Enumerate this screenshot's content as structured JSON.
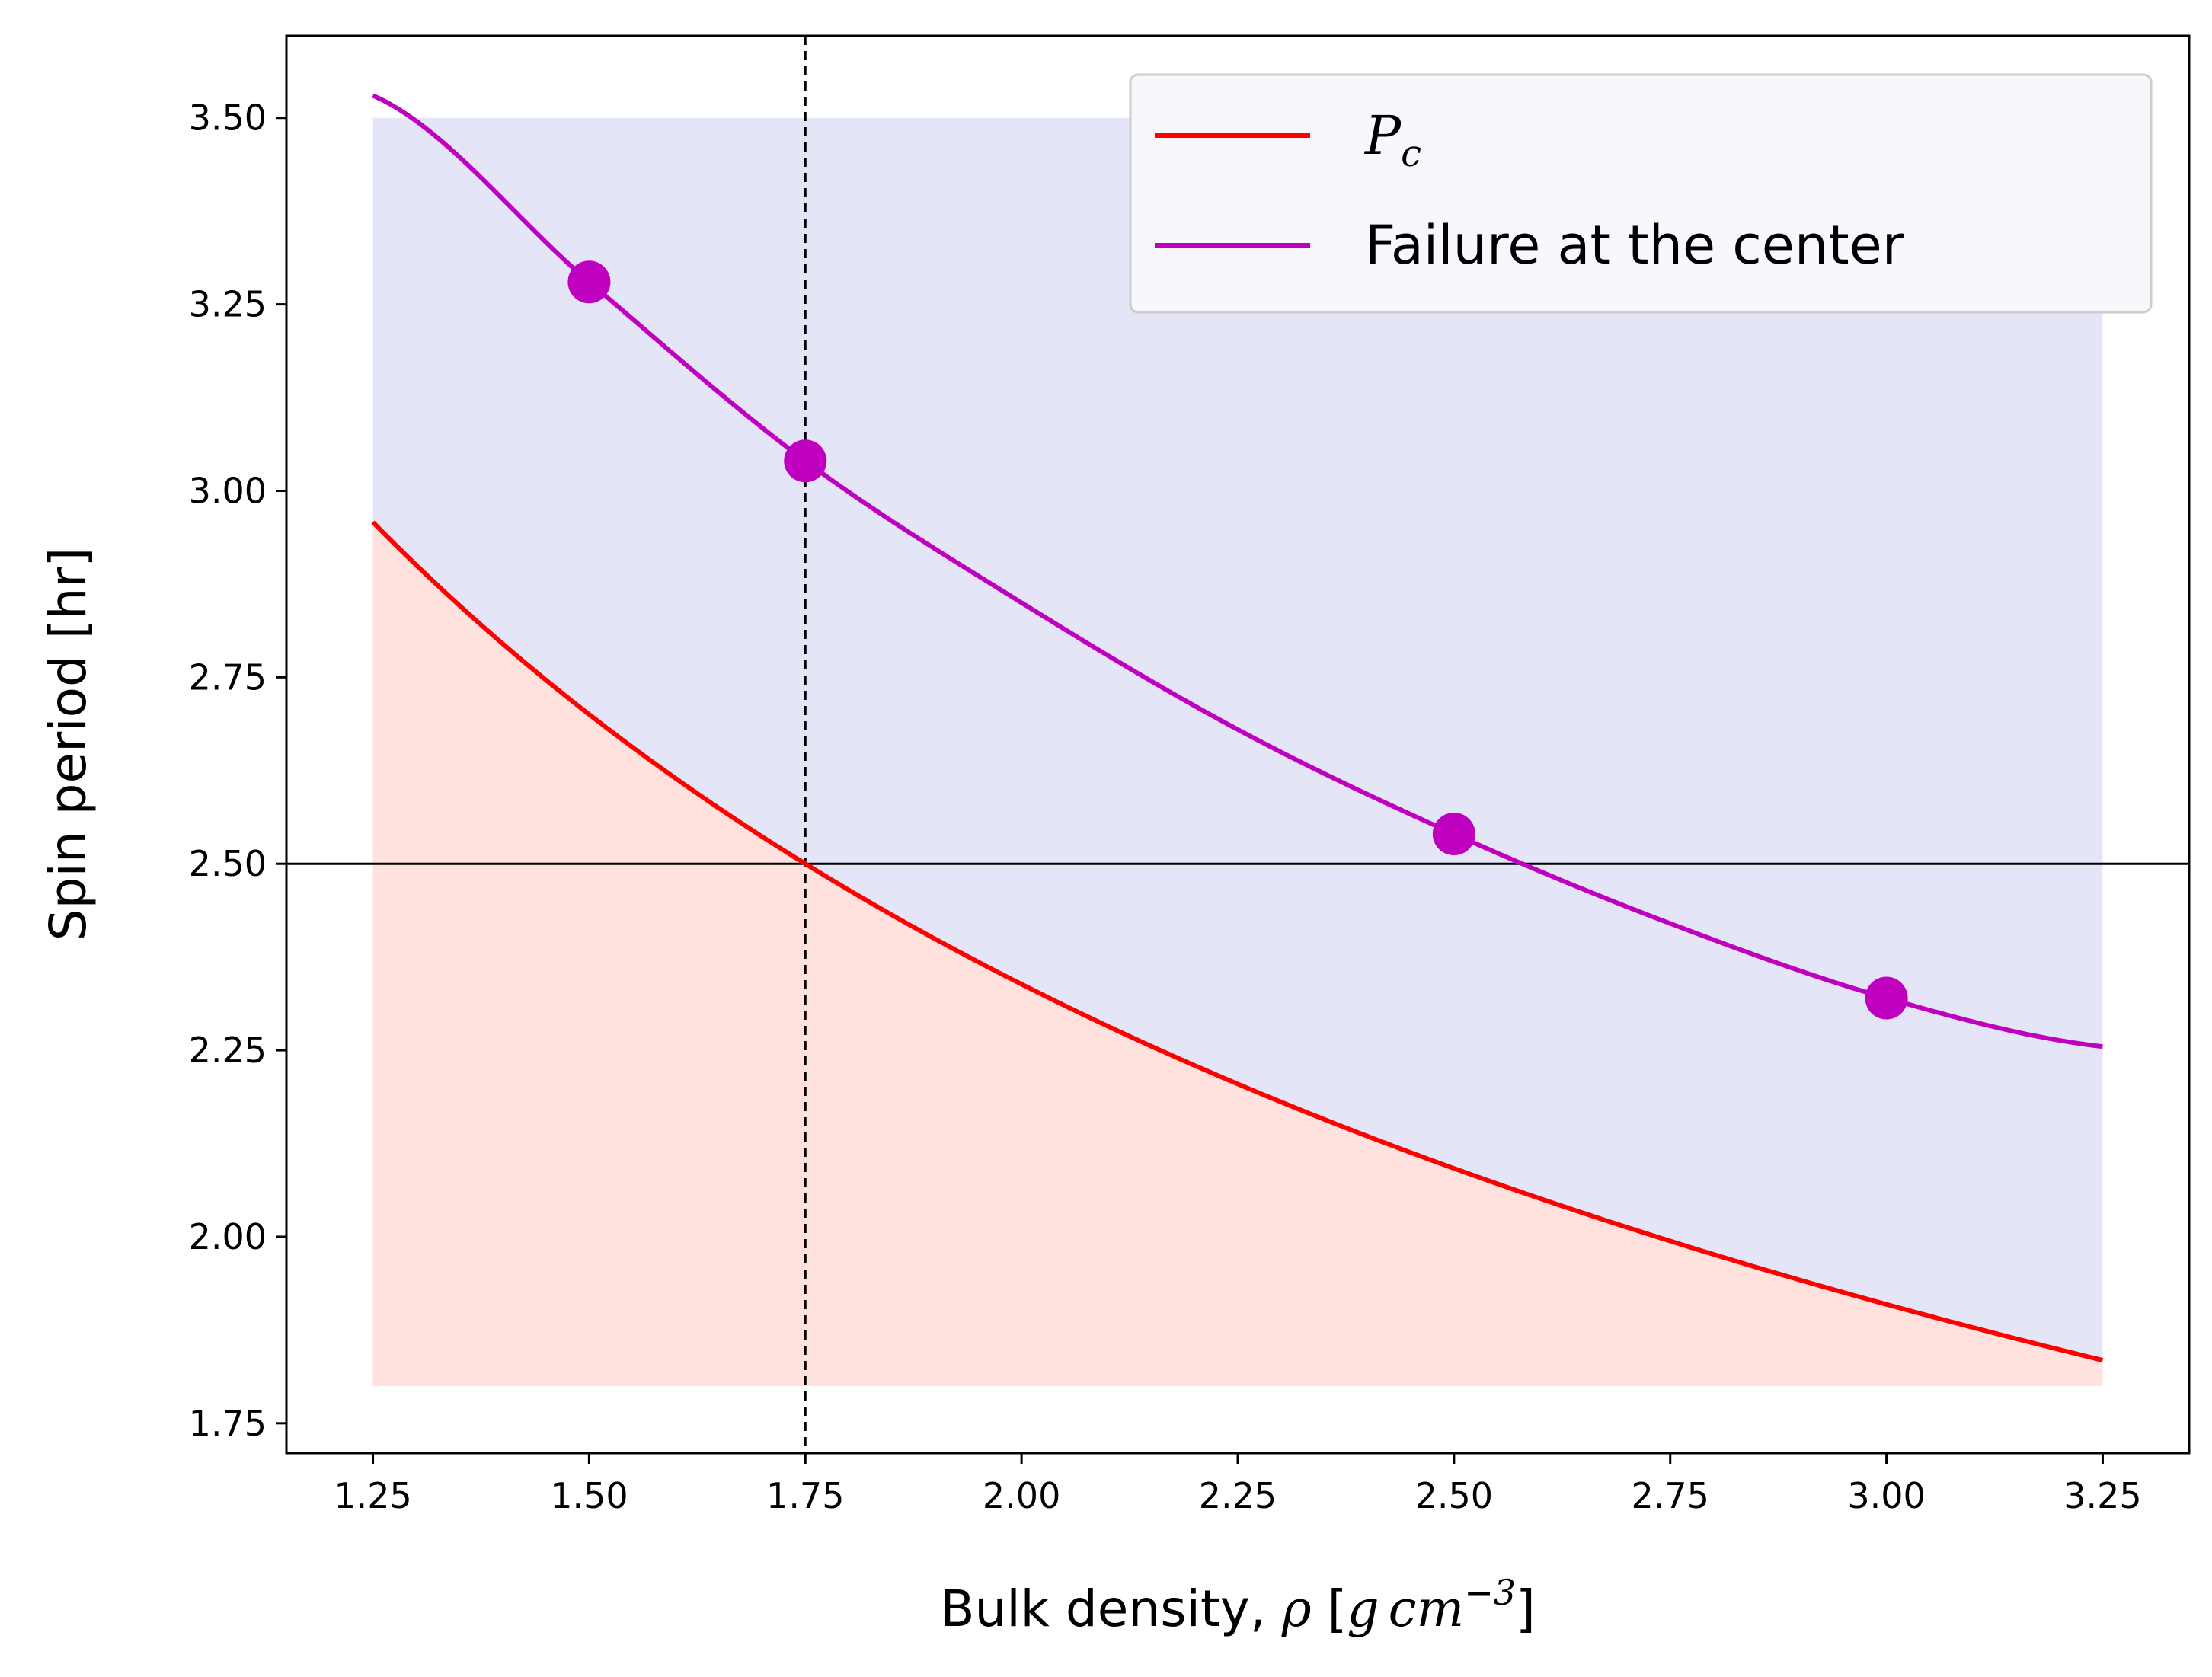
{
  "chart_data": {
    "type": "line",
    "xlabel": {
      "prefix": "Bulk density, ",
      "rho": "ρ",
      "open": " [",
      "g": "g",
      "cm": "cm",
      "exp": "−3",
      "close": "]"
    },
    "ylabel": "Spin period [hr]",
    "xlim": [
      1.15,
      3.35
    ],
    "ylim": [
      1.71,
      3.61
    ],
    "x_ticks": [
      "1.25",
      "1.50",
      "1.75",
      "2.00",
      "2.25",
      "2.50",
      "2.75",
      "3.00",
      "3.25"
    ],
    "y_ticks": [
      "1.75",
      "2.00",
      "2.25",
      "2.50",
      "2.75",
      "3.00",
      "3.25",
      "3.50"
    ],
    "reference_lines": {
      "horizontal_y": 2.5,
      "vertical_x": 1.75
    },
    "shaded_regions": [
      {
        "name": "stable-region",
        "color": "#e5e5f8",
        "x_range": [
          1.25,
          3.25
        ],
        "y_range": [
          1.8,
          3.5
        ]
      },
      {
        "name": "below-critical-region",
        "color": "#ffe1de",
        "x_range": [
          1.25,
          3.25
        ],
        "lower": 1.8,
        "upper_series": "Pc"
      }
    ],
    "series": [
      {
        "name": "Pc",
        "legend_main": "P",
        "legend_sub": "c",
        "color": "#ff0000",
        "formula_coeff": 3.3072,
        "x_range": [
          1.25,
          3.25
        ]
      },
      {
        "name": "Failure at the center",
        "legend": "Failure at the center",
        "color": "#bf00bf",
        "x_range": [
          1.25,
          3.25
        ],
        "points": [
          [
            1.25,
            3.53
          ],
          [
            1.5,
            3.28
          ],
          [
            1.75,
            3.04
          ],
          [
            2.0,
            2.85
          ],
          [
            2.25,
            2.68
          ],
          [
            2.5,
            2.54
          ],
          [
            2.75,
            2.42
          ],
          [
            3.0,
            2.32
          ],
          [
            3.25,
            2.255
          ]
        ]
      }
    ],
    "markers": [
      {
        "x": 1.5,
        "y": 3.28
      },
      {
        "x": 1.75,
        "y": 3.04
      },
      {
        "x": 2.5,
        "y": 2.54
      },
      {
        "x": 3.0,
        "y": 2.32
      }
    ],
    "legend_position": "top-right"
  },
  "colors": {
    "axes": "#000000",
    "legend_bg": "#f8f8fc",
    "legend_border": "#cccccc"
  }
}
